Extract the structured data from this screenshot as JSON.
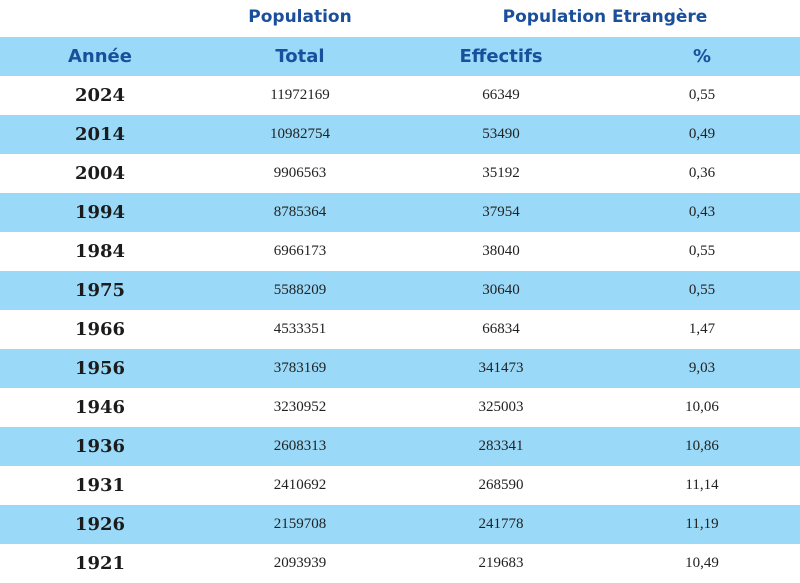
{
  "header": {
    "group_population": "Population",
    "group_foreign": "Population Etrangère",
    "columns": [
      "Année",
      "Total",
      "Effectifs",
      "%"
    ]
  },
  "rows": [
    {
      "year": "2024",
      "total": "11972169",
      "effectifs": "66349",
      "pct": "0,55"
    },
    {
      "year": "2014",
      "total": "10982754",
      "effectifs": "53490",
      "pct": "0,49"
    },
    {
      "year": "2004",
      "total": "9906563",
      "effectifs": "35192",
      "pct": "0,36"
    },
    {
      "year": "1994",
      "total": "8785364",
      "effectifs": "37954",
      "pct": "0,43"
    },
    {
      "year": "1984",
      "total": "6966173",
      "effectifs": "38040",
      "pct": "0,55"
    },
    {
      "year": "1975",
      "total": "5588209",
      "effectifs": "30640",
      "pct": "0,55"
    },
    {
      "year": "1966",
      "total": "4533351",
      "effectifs": "66834",
      "pct": "1,47"
    },
    {
      "year": "1956",
      "total": "3783169",
      "effectifs": "341473",
      "pct": "9,03"
    },
    {
      "year": "1946",
      "total": "3230952",
      "effectifs": "325003",
      "pct": "10,06"
    },
    {
      "year": "1936",
      "total": "2608313",
      "effectifs": "283341",
      "pct": "10,86"
    },
    {
      "year": "1931",
      "total": "2410692",
      "effectifs": "268590",
      "pct": "11,14"
    },
    {
      "year": "1926",
      "total": "2159708",
      "effectifs": "241778",
      "pct": "11,19"
    },
    {
      "year": "1921",
      "total": "2093939",
      "effectifs": "219683",
      "pct": "10,49"
    }
  ],
  "colors": {
    "header_text": "#1a4f9c",
    "band_blue": "#9ad9f7",
    "band_white": "#ffffff"
  }
}
